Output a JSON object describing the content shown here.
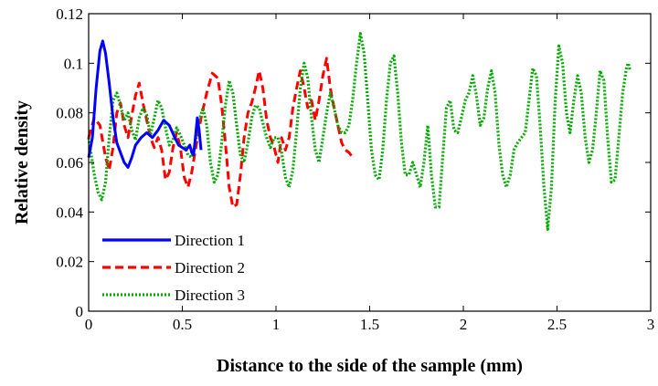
{
  "chart_data": {
    "type": "line",
    "title": "",
    "xlabel": "Distance to the side of the sample (mm)",
    "ylabel": "Relative density",
    "xlim": [
      0,
      3
    ],
    "ylim": [
      0,
      0.12
    ],
    "x_ticks": [
      "0",
      "0.5",
      "1",
      "1.5",
      "2",
      "2.5",
      "3"
    ],
    "y_ticks": [
      "0",
      "0.02",
      "0.04",
      "0.06",
      "0.08",
      "0.1",
      "0.12"
    ],
    "grid": false,
    "legend_position": "bottom-left",
    "series": [
      {
        "name": "Direction 1",
        "color": "#0000ff",
        "style": "solid",
        "points": [
          [
            0.0,
            0.062
          ],
          [
            0.02,
            0.07
          ],
          [
            0.04,
            0.09
          ],
          [
            0.06,
            0.105
          ],
          [
            0.075,
            0.109
          ],
          [
            0.09,
            0.104
          ],
          [
            0.11,
            0.092
          ],
          [
            0.13,
            0.078
          ],
          [
            0.15,
            0.068
          ],
          [
            0.17,
            0.064
          ],
          [
            0.19,
            0.06
          ],
          [
            0.21,
            0.058
          ],
          [
            0.23,
            0.062
          ],
          [
            0.25,
            0.067
          ],
          [
            0.28,
            0.07
          ],
          [
            0.31,
            0.072
          ],
          [
            0.34,
            0.07
          ],
          [
            0.37,
            0.073
          ],
          [
            0.4,
            0.077
          ],
          [
            0.43,
            0.075
          ],
          [
            0.46,
            0.07
          ],
          [
            0.48,
            0.067
          ],
          [
            0.5,
            0.066
          ],
          [
            0.52,
            0.065
          ],
          [
            0.54,
            0.067
          ],
          [
            0.55,
            0.064
          ],
          [
            0.56,
            0.063
          ],
          [
            0.57,
            0.07
          ],
          [
            0.58,
            0.078
          ],
          [
            0.59,
            0.073
          ],
          [
            0.6,
            0.065
          ]
        ]
      },
      {
        "name": "Direction 2",
        "color": "#ff0000",
        "style": "dashed",
        "points": [
          [
            0.0,
            0.07
          ],
          [
            0.03,
            0.078
          ],
          [
            0.06,
            0.075
          ],
          [
            0.09,
            0.062
          ],
          [
            0.11,
            0.057
          ],
          [
            0.13,
            0.066
          ],
          [
            0.15,
            0.08
          ],
          [
            0.17,
            0.084
          ],
          [
            0.19,
            0.075
          ],
          [
            0.21,
            0.07
          ],
          [
            0.23,
            0.079
          ],
          [
            0.25,
            0.087
          ],
          [
            0.27,
            0.092
          ],
          [
            0.29,
            0.084
          ],
          [
            0.31,
            0.077
          ],
          [
            0.33,
            0.07
          ],
          [
            0.35,
            0.066
          ],
          [
            0.37,
            0.07
          ],
          [
            0.39,
            0.065
          ],
          [
            0.41,
            0.053
          ],
          [
            0.43,
            0.056
          ],
          [
            0.45,
            0.066
          ],
          [
            0.47,
            0.072
          ],
          [
            0.49,
            0.066
          ],
          [
            0.51,
            0.054
          ],
          [
            0.53,
            0.05
          ],
          [
            0.55,
            0.056
          ],
          [
            0.57,
            0.065
          ],
          [
            0.6,
            0.078
          ],
          [
            0.63,
            0.088
          ],
          [
            0.66,
            0.096
          ],
          [
            0.69,
            0.094
          ],
          [
            0.71,
            0.083
          ],
          [
            0.73,
            0.068
          ],
          [
            0.75,
            0.05
          ],
          [
            0.77,
            0.042
          ],
          [
            0.79,
            0.043
          ],
          [
            0.81,
            0.055
          ],
          [
            0.83,
            0.07
          ],
          [
            0.85,
            0.08
          ],
          [
            0.87,
            0.084
          ],
          [
            0.89,
            0.09
          ],
          [
            0.91,
            0.097
          ],
          [
            0.93,
            0.09
          ],
          [
            0.95,
            0.077
          ],
          [
            0.97,
            0.07
          ],
          [
            0.99,
            0.066
          ],
          [
            1.01,
            0.06
          ],
          [
            1.03,
            0.07
          ],
          [
            1.05,
            0.065
          ],
          [
            1.07,
            0.07
          ],
          [
            1.09,
            0.082
          ],
          [
            1.11,
            0.09
          ],
          [
            1.13,
            0.097
          ],
          [
            1.15,
            0.09
          ],
          [
            1.17,
            0.082
          ],
          [
            1.19,
            0.085
          ],
          [
            1.21,
            0.077
          ],
          [
            1.23,
            0.085
          ],
          [
            1.25,
            0.095
          ],
          [
            1.27,
            0.102
          ],
          [
            1.29,
            0.09
          ],
          [
            1.31,
            0.082
          ],
          [
            1.33,
            0.075
          ],
          [
            1.35,
            0.068
          ],
          [
            1.37,
            0.065
          ],
          [
            1.39,
            0.064
          ],
          [
            1.41,
            0.062
          ]
        ]
      },
      {
        "name": "Direction 3",
        "color": "#00aa00",
        "style": "dotted",
        "points": [
          [
            0.0,
            0.07
          ],
          [
            0.03,
            0.055
          ],
          [
            0.05,
            0.048
          ],
          [
            0.07,
            0.045
          ],
          [
            0.09,
            0.052
          ],
          [
            0.11,
            0.07
          ],
          [
            0.13,
            0.085
          ],
          [
            0.15,
            0.088
          ],
          [
            0.17,
            0.083
          ],
          [
            0.19,
            0.077
          ],
          [
            0.21,
            0.08
          ],
          [
            0.23,
            0.073
          ],
          [
            0.25,
            0.069
          ],
          [
            0.27,
            0.078
          ],
          [
            0.29,
            0.082
          ],
          [
            0.31,
            0.079
          ],
          [
            0.33,
            0.071
          ],
          [
            0.35,
            0.078
          ],
          [
            0.37,
            0.085
          ],
          [
            0.39,
            0.082
          ],
          [
            0.41,
            0.074
          ],
          [
            0.43,
            0.067
          ],
          [
            0.45,
            0.069
          ],
          [
            0.47,
            0.074
          ],
          [
            0.49,
            0.071
          ],
          [
            0.51,
            0.067
          ],
          [
            0.53,
            0.063
          ],
          [
            0.55,
            0.062
          ],
          [
            0.57,
            0.068
          ],
          [
            0.59,
            0.077
          ],
          [
            0.61,
            0.082
          ],
          [
            0.63,
            0.075
          ],
          [
            0.65,
            0.06
          ],
          [
            0.67,
            0.052
          ],
          [
            0.69,
            0.055
          ],
          [
            0.71,
            0.068
          ],
          [
            0.73,
            0.083
          ],
          [
            0.75,
            0.093
          ],
          [
            0.77,
            0.088
          ],
          [
            0.79,
            0.075
          ],
          [
            0.81,
            0.063
          ],
          [
            0.83,
            0.06
          ],
          [
            0.85,
            0.068
          ],
          [
            0.87,
            0.078
          ],
          [
            0.89,
            0.083
          ],
          [
            0.91,
            0.082
          ],
          [
            0.93,
            0.076
          ],
          [
            0.95,
            0.07
          ],
          [
            0.97,
            0.066
          ],
          [
            0.99,
            0.07
          ],
          [
            1.01,
            0.07
          ],
          [
            1.03,
            0.064
          ],
          [
            1.05,
            0.054
          ],
          [
            1.07,
            0.05
          ],
          [
            1.09,
            0.057
          ],
          [
            1.11,
            0.073
          ],
          [
            1.13,
            0.09
          ],
          [
            1.15,
            0.1
          ],
          [
            1.17,
            0.094
          ],
          [
            1.19,
            0.078
          ],
          [
            1.21,
            0.065
          ],
          [
            1.23,
            0.06
          ],
          [
            1.25,
            0.07
          ],
          [
            1.27,
            0.08
          ],
          [
            1.29,
            0.088
          ],
          [
            1.31,
            0.082
          ],
          [
            1.33,
            0.075
          ],
          [
            1.35,
            0.072
          ],
          [
            1.37,
            0.072
          ],
          [
            1.39,
            0.075
          ],
          [
            1.41,
            0.086
          ],
          [
            1.43,
            0.1
          ],
          [
            1.45,
            0.112
          ],
          [
            1.47,
            0.104
          ],
          [
            1.49,
            0.085
          ],
          [
            1.51,
            0.065
          ],
          [
            1.53,
            0.055
          ],
          [
            1.55,
            0.053
          ],
          [
            1.57,
            0.065
          ],
          [
            1.59,
            0.085
          ],
          [
            1.61,
            0.1
          ],
          [
            1.63,
            0.103
          ],
          [
            1.65,
            0.088
          ],
          [
            1.67,
            0.068
          ],
          [
            1.69,
            0.055
          ],
          [
            1.71,
            0.055
          ],
          [
            1.73,
            0.06
          ],
          [
            1.75,
            0.055
          ],
          [
            1.77,
            0.05
          ],
          [
            1.79,
            0.06
          ],
          [
            1.81,
            0.075
          ],
          [
            1.83,
            0.055
          ],
          [
            1.85,
            0.042
          ],
          [
            1.87,
            0.042
          ],
          [
            1.89,
            0.062
          ],
          [
            1.91,
            0.082
          ],
          [
            1.93,
            0.085
          ],
          [
            1.95,
            0.073
          ],
          [
            1.97,
            0.072
          ],
          [
            1.99,
            0.078
          ],
          [
            2.01,
            0.085
          ],
          [
            2.03,
            0.088
          ],
          [
            2.05,
            0.095
          ],
          [
            2.07,
            0.087
          ],
          [
            2.09,
            0.075
          ],
          [
            2.11,
            0.078
          ],
          [
            2.13,
            0.09
          ],
          [
            2.15,
            0.097
          ],
          [
            2.17,
            0.088
          ],
          [
            2.19,
            0.067
          ],
          [
            2.21,
            0.055
          ],
          [
            2.23,
            0.05
          ],
          [
            2.25,
            0.055
          ],
          [
            2.27,
            0.065
          ],
          [
            2.29,
            0.068
          ],
          [
            2.31,
            0.07
          ],
          [
            2.33,
            0.072
          ],
          [
            2.35,
            0.085
          ],
          [
            2.37,
            0.098
          ],
          [
            2.39,
            0.095
          ],
          [
            2.41,
            0.075
          ],
          [
            2.43,
            0.05
          ],
          [
            2.45,
            0.033
          ],
          [
            2.47,
            0.05
          ],
          [
            2.49,
            0.085
          ],
          [
            2.51,
            0.107
          ],
          [
            2.53,
            0.1
          ],
          [
            2.55,
            0.08
          ],
          [
            2.57,
            0.072
          ],
          [
            2.59,
            0.085
          ],
          [
            2.61,
            0.095
          ],
          [
            2.63,
            0.088
          ],
          [
            2.65,
            0.07
          ],
          [
            2.67,
            0.06
          ],
          [
            2.69,
            0.065
          ],
          [
            2.71,
            0.08
          ],
          [
            2.73,
            0.097
          ],
          [
            2.75,
            0.093
          ],
          [
            2.77,
            0.07
          ],
          [
            2.79,
            0.052
          ],
          [
            2.81,
            0.053
          ],
          [
            2.83,
            0.07
          ],
          [
            2.85,
            0.088
          ],
          [
            2.87,
            0.098
          ],
          [
            2.88,
            0.1
          ],
          [
            2.89,
            0.097
          ]
        ]
      }
    ]
  }
}
